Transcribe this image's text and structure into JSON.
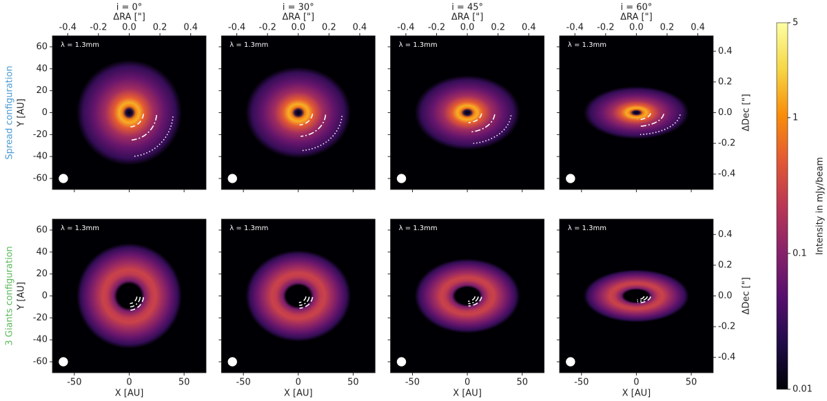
{
  "chart_data": [
    {
      "type": "image",
      "title": "i = 0°",
      "annotation": "λ = 1.3mm",
      "row_label": "Spread configuration",
      "row_label_color": "#4b9bd1",
      "ylabel": "Y [AU]",
      "x2label": "ΔRA [\"]",
      "xlim": [
        -70,
        70
      ],
      "ylim": [
        -70,
        70
      ],
      "xticks": [
        -50,
        0,
        50
      ],
      "yticks": [
        -60,
        -40,
        -20,
        0,
        20,
        40,
        60
      ],
      "x2lim": [
        -0.5,
        0.5
      ],
      "x2ticks": [
        -0.4,
        -0.2,
        {
          "value": 0,
          "label": "0.0"
        },
        0.2,
        0.4
      ],
      "inclination": 0,
      "profile": {
        "radius": [
          0,
          3,
          6,
          9,
          14,
          22,
          32,
          42,
          48
        ],
        "intensity": [
          0.01,
          0.02,
          0.8,
          1.5,
          0.5,
          0.15,
          0.06,
          0.03,
          0.01
        ]
      },
      "planets": [
        {
          "radius": 13,
          "style": "dashed"
        },
        {
          "radius": 25,
          "style": "dashdot"
        },
        {
          "radius": 40,
          "style": "dotted"
        }
      ],
      "beam": {
        "x": -60,
        "y": -60,
        "size": 3.5
      }
    },
    {
      "type": "image",
      "title": "i = 30°",
      "annotation": "λ = 1.3mm",
      "x2label": "ΔRA [\"]",
      "xlim": [
        -70,
        70
      ],
      "ylim": [
        -70,
        70
      ],
      "xticks": [
        -50,
        0,
        50
      ],
      "yticks": [
        -60,
        -40,
        -20,
        0,
        20,
        40,
        60
      ],
      "x2lim": [
        -0.5,
        0.5
      ],
      "x2ticks": [
        -0.4,
        -0.2,
        {
          "value": 0,
          "label": "0.0"
        },
        0.2,
        0.4
      ],
      "inclination": 30,
      "profile": {
        "radius": [
          0,
          3,
          6,
          9,
          14,
          22,
          32,
          42,
          48
        ],
        "intensity": [
          0.01,
          0.02,
          0.8,
          1.5,
          0.5,
          0.15,
          0.06,
          0.03,
          0.01
        ]
      },
      "planets": [
        {
          "radius": 13,
          "style": "dashed"
        },
        {
          "radius": 25,
          "style": "dashdot"
        },
        {
          "radius": 40,
          "style": "dotted"
        }
      ],
      "beam": {
        "x": -60,
        "y": -60,
        "size": 3.5
      }
    },
    {
      "type": "image",
      "title": "i = 45°",
      "annotation": "λ = 1.3mm",
      "x2label": "ΔRA [\"]",
      "xlim": [
        -70,
        70
      ],
      "ylim": [
        -70,
        70
      ],
      "xticks": [
        -50,
        0,
        50
      ],
      "yticks": [
        -60,
        -40,
        -20,
        0,
        20,
        40,
        60
      ],
      "x2lim": [
        -0.5,
        0.5
      ],
      "x2ticks": [
        -0.4,
        -0.2,
        {
          "value": 0,
          "label": "0.0"
        },
        0.2,
        0.4
      ],
      "inclination": 45,
      "profile": {
        "radius": [
          0,
          3,
          6,
          9,
          14,
          22,
          32,
          42,
          48
        ],
        "intensity": [
          0.01,
          0.02,
          0.8,
          1.5,
          0.5,
          0.15,
          0.06,
          0.03,
          0.01
        ]
      },
      "planets": [
        {
          "radius": 13,
          "style": "dashed"
        },
        {
          "radius": 25,
          "style": "dashdot"
        },
        {
          "radius": 40,
          "style": "dotted"
        }
      ],
      "beam": {
        "x": -60,
        "y": -60,
        "size": 3.5
      }
    },
    {
      "type": "image",
      "title": "i = 60°",
      "annotation": "λ = 1.3mm",
      "x2label": "ΔRA [\"]",
      "y2label": "ΔDec [\"]",
      "xlim": [
        -70,
        70
      ],
      "ylim": [
        -70,
        70
      ],
      "xticks": [
        -50,
        0,
        50
      ],
      "yticks": [
        -60,
        -40,
        -20,
        0,
        20,
        40,
        60
      ],
      "x2lim": [
        -0.5,
        0.5
      ],
      "x2ticks": [
        -0.4,
        -0.2,
        {
          "value": 0,
          "label": "0.0"
        },
        0.2,
        0.4
      ],
      "y2lim": [
        -0.5,
        0.5
      ],
      "y2ticks": [
        -0.4,
        -0.2,
        {
          "value": 0,
          "label": "0.0"
        },
        0.2,
        0.4
      ],
      "inclination": 60,
      "profile": {
        "radius": [
          0,
          3,
          6,
          9,
          14,
          22,
          32,
          42,
          48
        ],
        "intensity": [
          0.01,
          0.02,
          0.8,
          1.5,
          0.5,
          0.15,
          0.06,
          0.03,
          0.01
        ]
      },
      "planets": [
        {
          "radius": 13,
          "style": "dashed"
        },
        {
          "radius": 25,
          "style": "dashdot"
        },
        {
          "radius": 40,
          "style": "dotted"
        }
      ],
      "beam": {
        "x": -60,
        "y": -60,
        "size": 3.5
      }
    },
    {
      "type": "image",
      "annotation": "λ = 1.3mm",
      "row_label": "3 Giants configuration",
      "row_label_color": "#5cb85c",
      "ylabel": "Y [AU]",
      "xlabel": "X [AU]",
      "xlim": [
        -70,
        70
      ],
      "ylim": [
        -70,
        70
      ],
      "xticks": [
        -50,
        0,
        50
      ],
      "yticks": [
        -60,
        -40,
        -20,
        0,
        20,
        40,
        60
      ],
      "inclination": 0,
      "profile": {
        "radius": [
          0,
          11,
          14,
          20,
          24,
          30,
          38,
          44,
          48
        ],
        "intensity": [
          0.01,
          0.01,
          0.08,
          0.25,
          0.3,
          0.15,
          0.06,
          0.03,
          0.01
        ]
      },
      "planets": [
        {
          "radius": 7,
          "style": "dashed"
        },
        {
          "radius": 10,
          "style": "dashdot"
        },
        {
          "radius": 13,
          "style": "dashed"
        }
      ],
      "beam": {
        "x": -60,
        "y": -60,
        "size": 3.5
      }
    },
    {
      "type": "image",
      "annotation": "λ = 1.3mm",
      "xlabel": "X [AU]",
      "xlim": [
        -70,
        70
      ],
      "ylim": [
        -70,
        70
      ],
      "xticks": [
        -50,
        0,
        50
      ],
      "yticks": [
        -60,
        -40,
        -20,
        0,
        20,
        40,
        60
      ],
      "inclination": 30,
      "profile": {
        "radius": [
          0,
          11,
          14,
          20,
          24,
          30,
          38,
          44,
          48
        ],
        "intensity": [
          0.01,
          0.01,
          0.08,
          0.25,
          0.3,
          0.15,
          0.06,
          0.03,
          0.01
        ]
      },
      "planets": [
        {
          "radius": 7,
          "style": "dashed"
        },
        {
          "radius": 10,
          "style": "dashdot"
        },
        {
          "radius": 13,
          "style": "dashed"
        }
      ],
      "beam": {
        "x": -60,
        "y": -60,
        "size": 3.5
      }
    },
    {
      "type": "image",
      "annotation": "λ = 1.3mm",
      "xlabel": "X [AU]",
      "xlim": [
        -70,
        70
      ],
      "ylim": [
        -70,
        70
      ],
      "xticks": [
        -50,
        0,
        50
      ],
      "yticks": [
        -60,
        -40,
        -20,
        0,
        20,
        40,
        60
      ],
      "inclination": 45,
      "profile": {
        "radius": [
          0,
          11,
          14,
          20,
          24,
          30,
          38,
          44,
          48
        ],
        "intensity": [
          0.01,
          0.01,
          0.08,
          0.25,
          0.3,
          0.15,
          0.06,
          0.03,
          0.01
        ]
      },
      "planets": [
        {
          "radius": 7,
          "style": "dashed"
        },
        {
          "radius": 10,
          "style": "dashdot"
        },
        {
          "radius": 13,
          "style": "dashed"
        }
      ],
      "beam": {
        "x": -60,
        "y": -60,
        "size": 3.5
      }
    },
    {
      "type": "image",
      "annotation": "λ = 1.3mm",
      "xlabel": "X [AU]",
      "y2label": "ΔDec [\"]",
      "xlim": [
        -70,
        70
      ],
      "ylim": [
        -70,
        70
      ],
      "xticks": [
        -50,
        0,
        50
      ],
      "yticks": [
        -60,
        -40,
        -20,
        0,
        20,
        40,
        60
      ],
      "y2lim": [
        -0.5,
        0.5
      ],
      "y2ticks": [
        -0.4,
        -0.2,
        {
          "value": 0,
          "label": "0.0"
        },
        0.2,
        0.4
      ],
      "inclination": 60,
      "profile": {
        "radius": [
          0,
          11,
          14,
          20,
          24,
          30,
          38,
          44,
          48
        ],
        "intensity": [
          0.01,
          0.01,
          0.08,
          0.25,
          0.3,
          0.15,
          0.06,
          0.03,
          0.01
        ]
      },
      "planets": [
        {
          "radius": 7,
          "style": "dashed"
        },
        {
          "radius": 10,
          "style": "dashdot"
        },
        {
          "radius": 13,
          "style": "dashed"
        }
      ],
      "beam": {
        "x": -60,
        "y": -60,
        "size": 3.5
      }
    },
    {
      "type": "colorbar",
      "ylabel": "Intensity in mJy/beam",
      "log_scale": true,
      "ylim": [
        0.01,
        5
      ],
      "yticks": [
        0.01,
        0.1,
        1,
        5
      ],
      "colors": [
        "#000004",
        "#1f0c48",
        "#550f6d",
        "#88226a",
        "#ba3655",
        "#e35933",
        "#f98e09",
        "#f6d746",
        "#fcffa4"
      ]
    }
  ]
}
